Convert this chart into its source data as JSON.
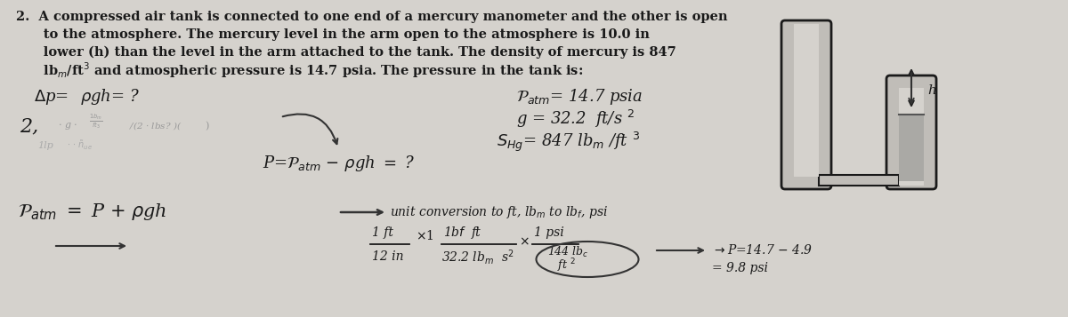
{
  "bg_color": "#c8c5c0",
  "text_color": "#1a1a1a",
  "dark_text": "#222222",
  "figsize": [
    12.0,
    3.57
  ],
  "dpi": 100,
  "line1": "2.  A compressed air tank is connected to one end of a mercury manometer and the other is open",
  "line2": "      to the atmosphere. The mercury level in the arm open to the atmosphere is 10.0 in",
  "line3": "      lower (h) than the level in the arm attached to the tank. The density of mercury is 847",
  "line4": "      lbₘ/ft³ and atmospheric pressure is 14.7 psia. The pressure in the tank is:"
}
